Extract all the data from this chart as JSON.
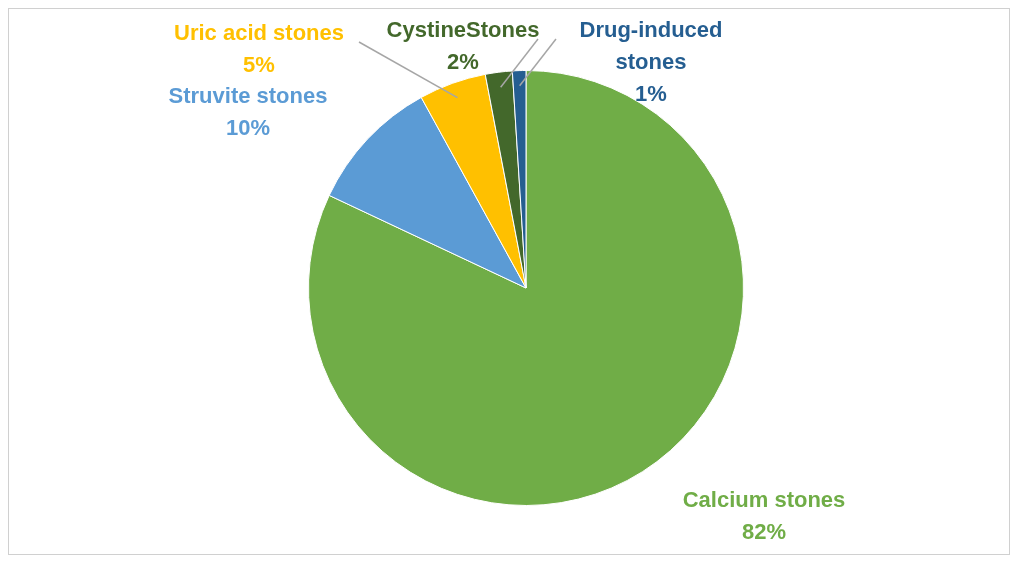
{
  "chart_data": {
    "type": "pie",
    "categories": [
      "Calcium stones",
      "Struvite stones",
      "Uric acid stones",
      "CystineStones",
      "Drug-induced stones"
    ],
    "values": [
      82,
      10,
      5,
      2,
      1
    ],
    "colors": [
      "#70ad47",
      "#5b9bd5",
      "#ffc000",
      "#43682b",
      "#255e91"
    ],
    "value_labels": [
      "82%",
      "10%",
      "5%",
      "2%",
      "1%"
    ],
    "legend": false
  }
}
